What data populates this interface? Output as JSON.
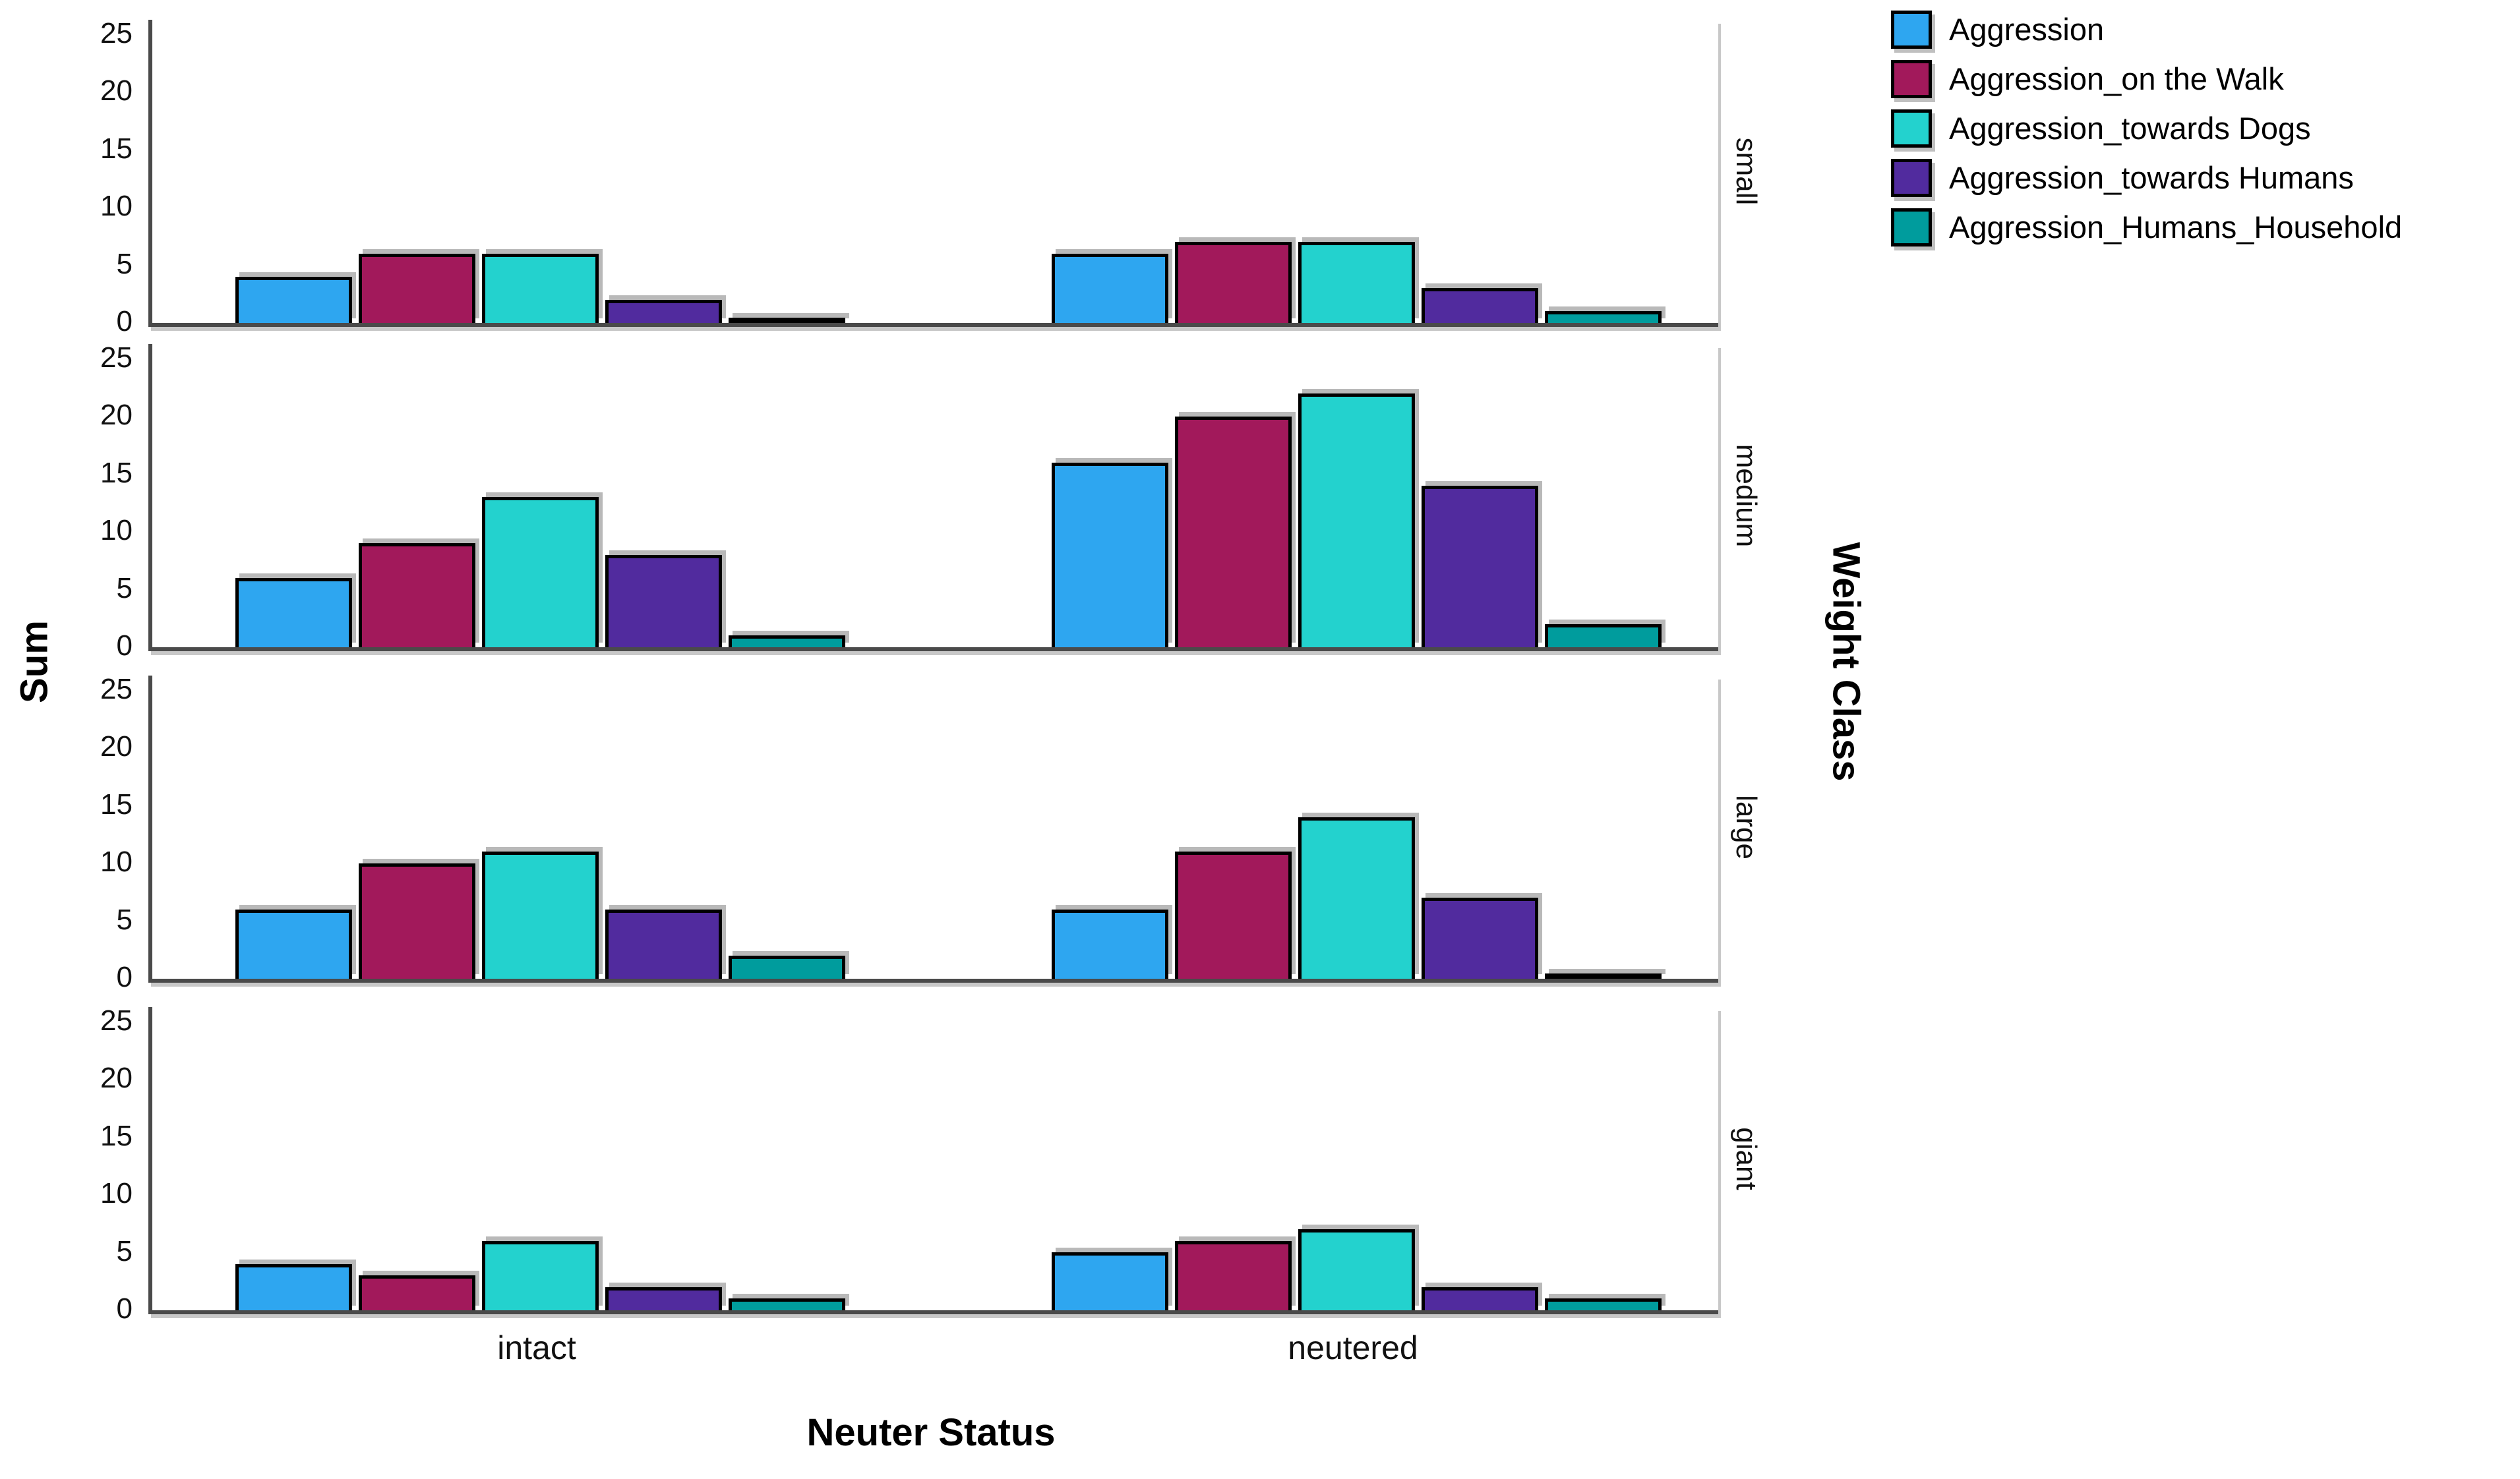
{
  "chart_data": {
    "type": "bar",
    "title": "",
    "xlabel": "Neuter Status",
    "ylabel": "Sum",
    "facet_row_label": "Weight Class",
    "categories": [
      "intact",
      "neutered"
    ],
    "yticks": [
      0,
      5,
      10,
      15,
      20,
      25
    ],
    "ylim": [
      0,
      25
    ],
    "grid": false,
    "legend_position": "top-right",
    "series": [
      {
        "name": "Aggression",
        "color": "#2EA6F0"
      },
      {
        "name": "Aggression_on the Walk",
        "color": "#A2195B"
      },
      {
        "name": "Aggression_towards Dogs",
        "color": "#23D2CE"
      },
      {
        "name": "Aggression_towards Humans",
        "color": "#512B9E"
      },
      {
        "name": "Aggression_Humans_Household",
        "color": "#009C9D"
      }
    ],
    "facets": [
      {
        "label": "small",
        "values": {
          "intact": [
            4,
            6,
            6,
            2,
            0
          ],
          "neutered": [
            6,
            7,
            7,
            3,
            1
          ]
        }
      },
      {
        "label": "medium",
        "values": {
          "intact": [
            6,
            9,
            13,
            8,
            1
          ],
          "neutered": [
            16,
            20,
            22,
            14,
            2
          ]
        }
      },
      {
        "label": "large",
        "values": {
          "intact": [
            6,
            10,
            11,
            6,
            2
          ],
          "neutered": [
            6,
            11,
            14,
            7,
            0
          ]
        }
      },
      {
        "label": "giant",
        "values": {
          "intact": [
            4,
            3,
            6,
            2,
            1
          ],
          "neutered": [
            5,
            6,
            7,
            2,
            1
          ]
        }
      }
    ],
    "colors": {
      "axis_line": "#4a4a4a",
      "bar_outline": "#000000",
      "text": "#111111"
    }
  }
}
